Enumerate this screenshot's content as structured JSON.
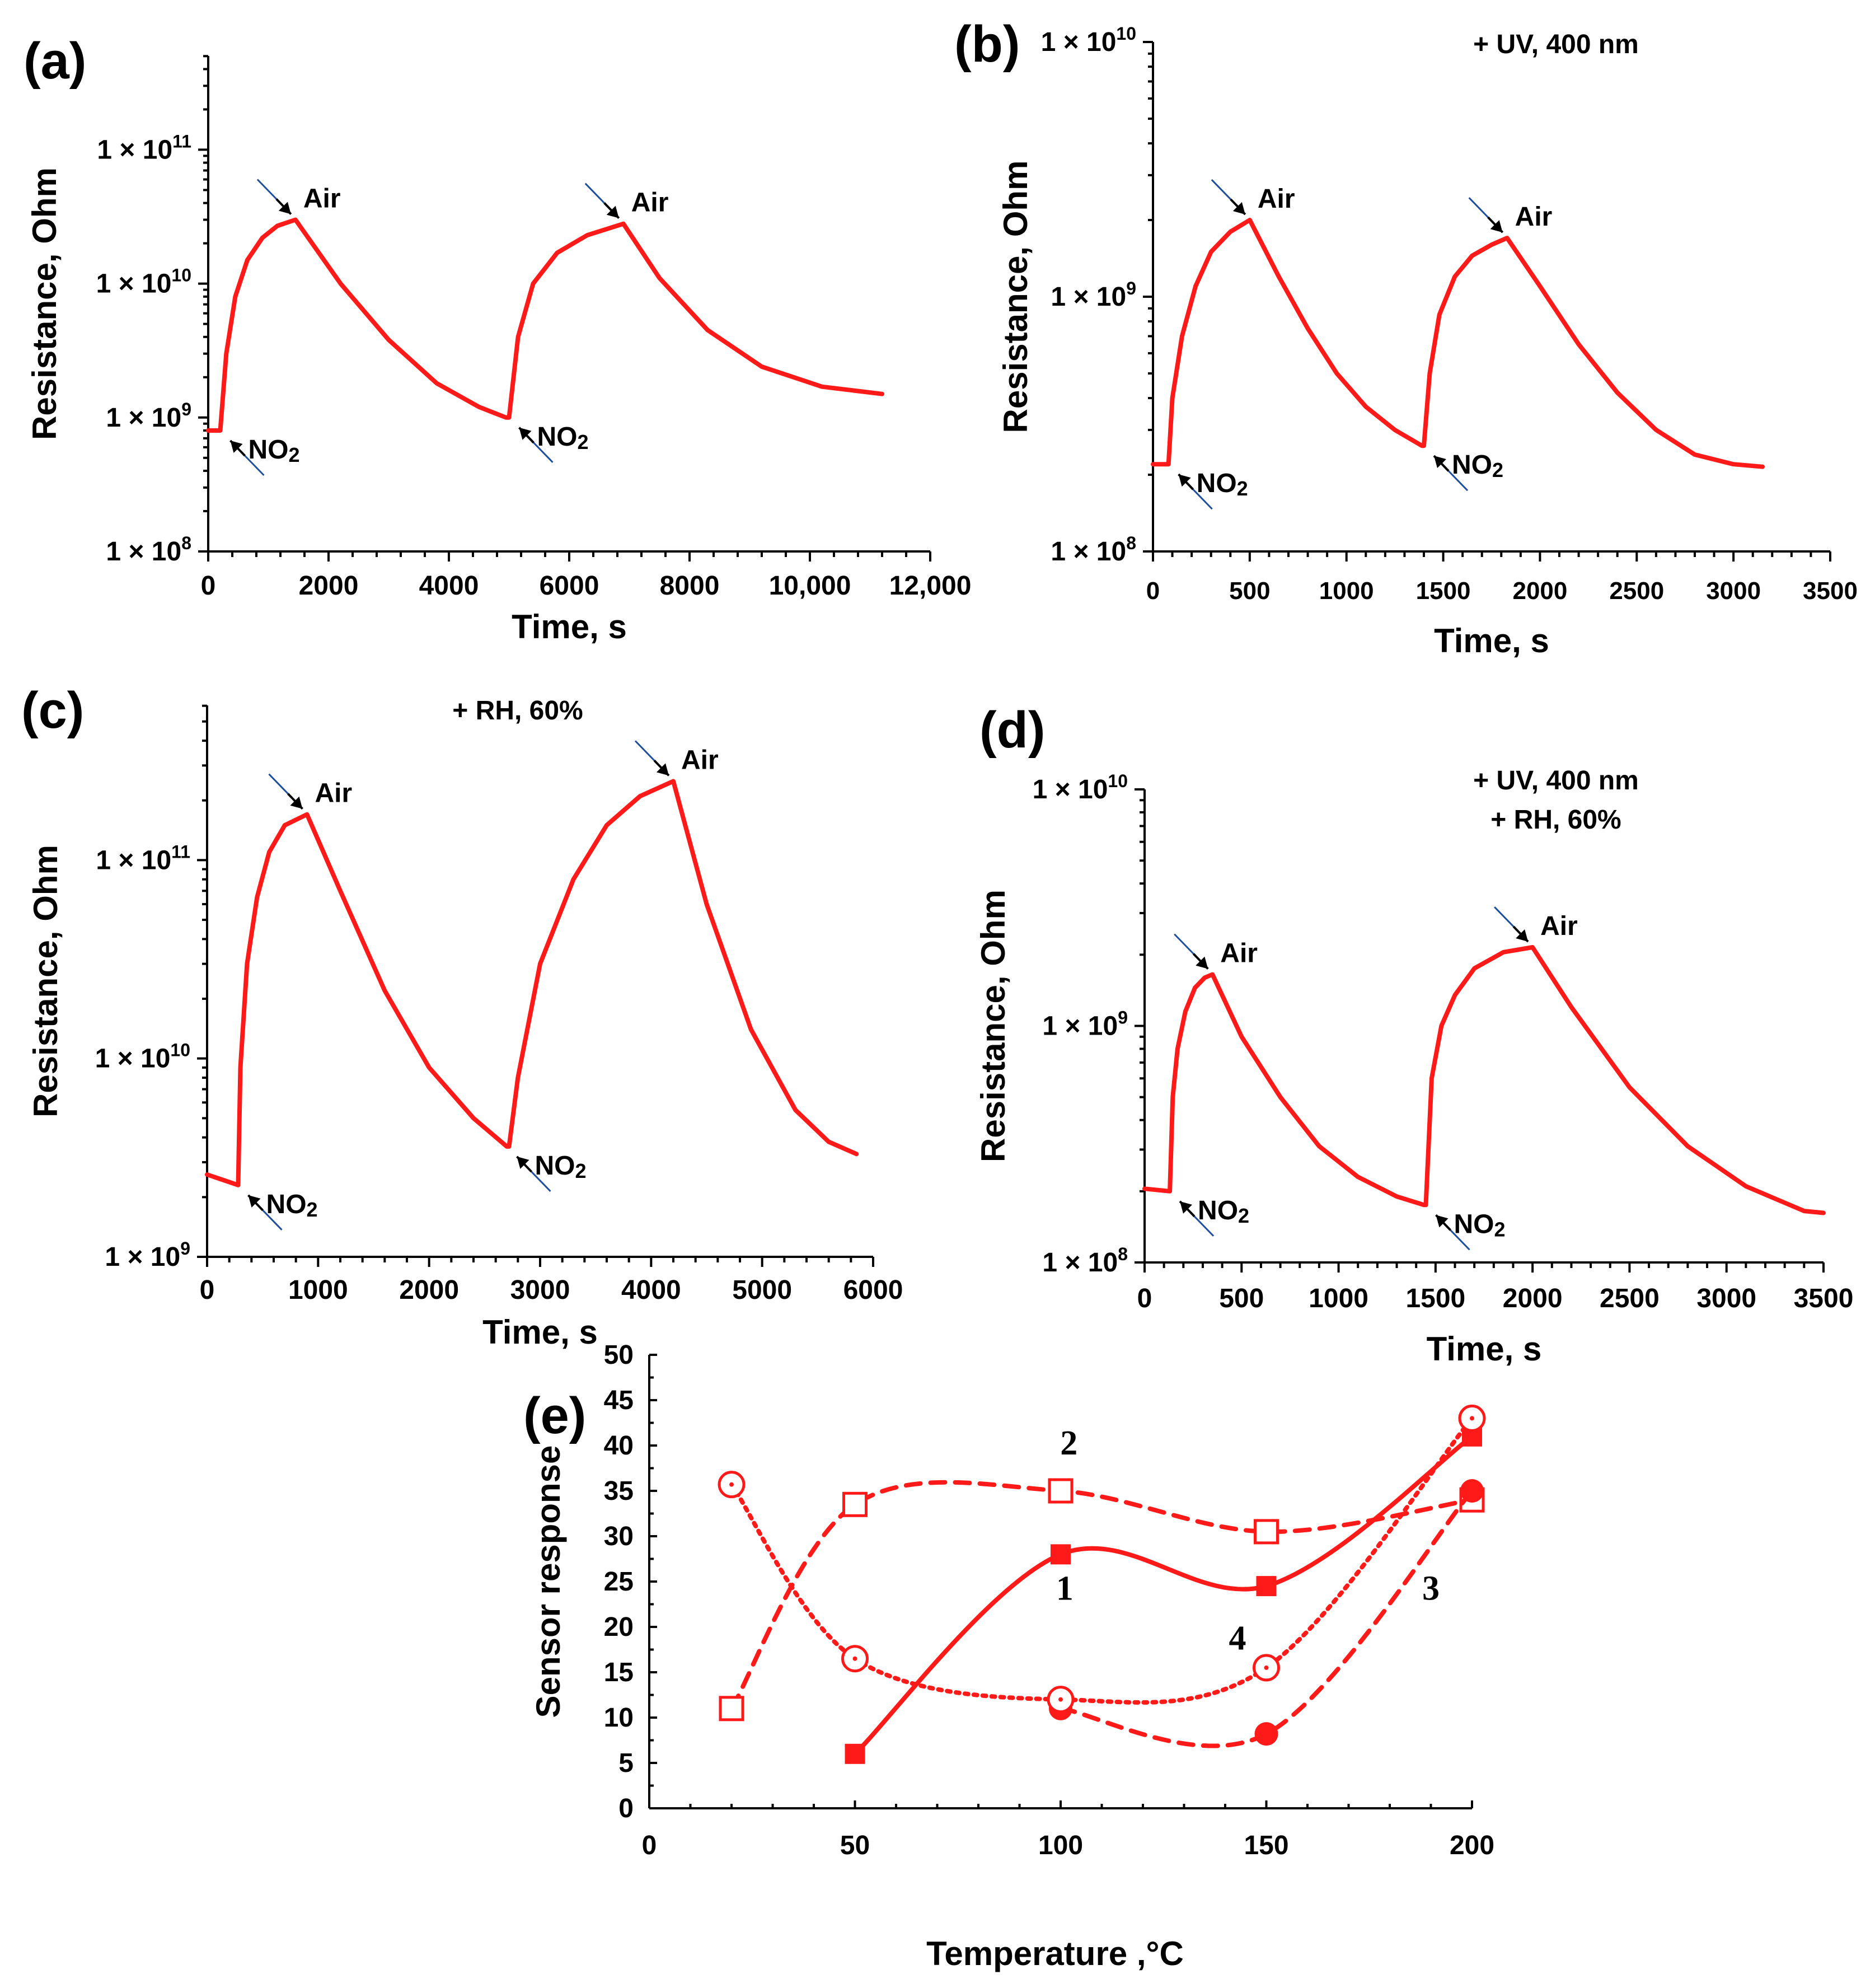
{
  "chart_data": [
    {
      "panel": "(a)",
      "type": "line",
      "yscale": "log",
      "xlabel": "Time, s",
      "ylabel": "Resistance, Ohm",
      "xlim": [
        0,
        12000
      ],
      "ylim": [
        100000000,
        500000000000
      ],
      "x_ticks": [
        "0",
        "2000",
        "4000",
        "6000",
        "8000",
        "10,000",
        "12,000"
      ],
      "y_ticks": [
        {
          "m": "1 × 10",
          "e": "8"
        },
        {
          "m": "1 × 10",
          "e": "9"
        },
        {
          "m": "1 × 10",
          "e": "10"
        },
        {
          "m": "1 × 10",
          "e": "11"
        }
      ],
      "conditions": [],
      "annotations": [
        {
          "text": "NO2",
          "x": 200,
          "y": 800000000,
          "pos": "below"
        },
        {
          "text": "Air",
          "x": 1450,
          "y": 30000000000,
          "pos": "above"
        },
        {
          "text": "NO2",
          "x": 5000,
          "y": 1000000000,
          "pos": "below"
        },
        {
          "text": "Air",
          "x": 6900,
          "y": 28000000000,
          "pos": "above"
        }
      ],
      "series": [
        {
          "name": "resistance",
          "x": [
            0,
            200,
            300,
            450,
            650,
            900,
            1150,
            1450,
            2200,
            3000,
            3800,
            4500,
            4950,
            5000,
            5150,
            5400,
            5800,
            6300,
            6900,
            7500,
            8300,
            9200,
            10200,
            11200
          ],
          "y": [
            800000000,
            800000000,
            3000000000,
            8000000000,
            15000000000,
            22000000000,
            27000000000,
            30000000000,
            10000000000,
            3800000000,
            1800000000,
            1200000000,
            1000000000,
            1000000000,
            4000000000,
            10000000000,
            17000000000,
            23000000000,
            28000000000,
            11000000000,
            4500000000,
            2400000000,
            1700000000,
            1500000000
          ]
        }
      ]
    },
    {
      "panel": "(b)",
      "type": "line",
      "yscale": "log",
      "xlabel": "Time, s",
      "ylabel": "Resistance, Ohm",
      "xlim": [
        0,
        3500
      ],
      "ylim": [
        100000000,
        10000000000
      ],
      "x_ticks": [
        "0",
        "500",
        "1000",
        "1500",
        "2000",
        "2500",
        "3000",
        "3500"
      ],
      "y_ticks": [
        {
          "m": "1 × 10",
          "e": "8"
        },
        {
          "m": "1 × 10",
          "e": "9"
        },
        {
          "m": "1 × 10",
          "e": "10"
        }
      ],
      "conditions": [
        "+ UV, 400 nm"
      ],
      "annotations": [
        {
          "text": "NO2",
          "x": 80,
          "y": 220000000,
          "pos": "below"
        },
        {
          "text": "Air",
          "x": 500,
          "y": 2000000000,
          "pos": "above"
        },
        {
          "text": "NO2",
          "x": 1400,
          "y": 260000000,
          "pos": "below"
        },
        {
          "text": "Air",
          "x": 1830,
          "y": 1700000000,
          "pos": "above"
        }
      ],
      "series": [
        {
          "name": "resistance",
          "x": [
            0,
            80,
            100,
            150,
            220,
            300,
            400,
            500,
            650,
            800,
            950,
            1100,
            1250,
            1390,
            1400,
            1430,
            1480,
            1560,
            1650,
            1750,
            1830,
            2000,
            2200,
            2400,
            2600,
            2800,
            3000,
            3150
          ],
          "y": [
            220000000,
            220000000,
            400000000,
            700000000,
            1100000000,
            1500000000,
            1800000000,
            2000000000,
            1200000000,
            750000000,
            500000000,
            370000000,
            300000000,
            260000000,
            260000000,
            500000000,
            850000000,
            1200000000,
            1450000000,
            1600000000,
            1700000000,
            1100000000,
            650000000,
            420000000,
            300000000,
            240000000,
            220000000,
            215000000
          ]
        }
      ]
    },
    {
      "panel": "(c)",
      "type": "line",
      "yscale": "log",
      "xlabel": "Time, s",
      "ylabel": "Resistance, Ohm",
      "xlim": [
        0,
        6000
      ],
      "ylim": [
        1000000000,
        600000000000
      ],
      "x_ticks": [
        "0",
        "1000",
        "2000",
        "3000",
        "4000",
        "5000",
        "6000"
      ],
      "y_ticks": [
        {
          "m": "1 × 10",
          "e": "9"
        },
        {
          "m": "1 × 10",
          "e": "10"
        },
        {
          "m": "1 × 10",
          "e": "11"
        }
      ],
      "conditions": [
        "+ RH, 60%"
      ],
      "annotations": [
        {
          "text": "NO2",
          "x": 280,
          "y": 2300000000,
          "pos": "below"
        },
        {
          "text": "Air",
          "x": 900,
          "y": 170000000000,
          "pos": "above"
        },
        {
          "text": "NO2",
          "x": 2700,
          "y": 3600000000,
          "pos": "below"
        },
        {
          "text": "Air",
          "x": 4200,
          "y": 250000000000,
          "pos": "above"
        }
      ],
      "series": [
        {
          "name": "resistance",
          "x": [
            0,
            280,
            300,
            360,
            450,
            560,
            700,
            900,
            1200,
            1600,
            2000,
            2400,
            2700,
            2720,
            2800,
            3000,
            3300,
            3600,
            3900,
            4200,
            4500,
            4900,
            5300,
            5600,
            5850
          ],
          "y": [
            2600000000,
            2300000000,
            9000000000,
            30000000000,
            65000000000,
            110000000000,
            150000000000,
            170000000000,
            70000000000,
            22000000000,
            9000000000,
            5000000000,
            3600000000,
            3600000000,
            8000000000,
            30000000000,
            80000000000,
            150000000000,
            210000000000,
            250000000000,
            60000000000,
            14000000000,
            5500000000,
            3800000000,
            3300000000
          ]
        }
      ]
    },
    {
      "panel": "(d)",
      "type": "line",
      "yscale": "log",
      "xlabel": "Time, s",
      "ylabel": "Resistance, Ohm",
      "xlim": [
        0,
        3500
      ],
      "ylim": [
        100000000,
        10000000000
      ],
      "x_ticks": [
        "0",
        "500",
        "1000",
        "1500",
        "2000",
        "2500",
        "3000",
        "3500"
      ],
      "y_ticks": [
        {
          "m": "1 × 10",
          "e": "8"
        },
        {
          "m": "1 × 10",
          "e": "9"
        },
        {
          "m": "1 × 10",
          "e": "10"
        }
      ],
      "conditions": [
        "+ UV, 400 nm",
        "+ RH, 60%"
      ],
      "annotations": [
        {
          "text": "NO2",
          "x": 130,
          "y": 200000000,
          "pos": "below"
        },
        {
          "text": "Air",
          "x": 350,
          "y": 1650000000,
          "pos": "above"
        },
        {
          "text": "NO2",
          "x": 1450,
          "y": 175000000,
          "pos": "below"
        },
        {
          "text": "Air",
          "x": 2000,
          "y": 2150000000,
          "pos": "above"
        }
      ],
      "series": [
        {
          "name": "resistance",
          "x": [
            0,
            130,
            145,
            170,
            210,
            260,
            310,
            350,
            500,
            700,
            900,
            1100,
            1300,
            1440,
            1450,
            1480,
            1530,
            1600,
            1700,
            1850,
            2000,
            2200,
            2500,
            2800,
            3100,
            3400,
            3500
          ],
          "y": [
            205000000,
            200000000,
            500000000,
            800000000,
            1150000000,
            1450000000,
            1600000000,
            1650000000,
            900000000,
            500000000,
            310000000,
            230000000,
            190000000,
            175000000,
            175000000,
            600000000,
            1000000000,
            1350000000,
            1750000000,
            2050000000,
            2150000000,
            1200000000,
            550000000,
            310000000,
            210000000,
            165000000,
            162000000
          ]
        }
      ]
    },
    {
      "panel": "(e)",
      "type": "line",
      "xlabel": "Temperature ,°C",
      "ylabel": "Sensor response",
      "xlim": [
        0,
        200
      ],
      "ylim": [
        0,
        50
      ],
      "x_ticks": [
        "0",
        "50",
        "100",
        "150",
        "200"
      ],
      "y_ticks": [
        "0",
        "5",
        "10",
        "15",
        "20",
        "25",
        "30",
        "35",
        "40",
        "45",
        "50"
      ],
      "series": [
        {
          "name": "1",
          "marker": "filled-square",
          "style": "solid",
          "x": [
            50,
            100,
            150,
            200
          ],
          "y": [
            6,
            28,
            24.5,
            41
          ]
        },
        {
          "name": "2",
          "marker": "open-square",
          "style": "dashed",
          "x": [
            20,
            50,
            100,
            150,
            200
          ],
          "y": [
            11,
            33.5,
            35,
            30.5,
            34
          ]
        },
        {
          "name": "3",
          "marker": "filled-circle",
          "style": "dashed",
          "x": [
            100,
            150,
            200
          ],
          "y": [
            11,
            8.2,
            35
          ]
        },
        {
          "name": "4",
          "marker": "open-circle",
          "style": "dotted",
          "x": [
            20,
            50,
            100,
            150,
            200
          ],
          "y": [
            35.7,
            16.5,
            12,
            15.5,
            43
          ]
        }
      ],
      "curve_labels": [
        {
          "text": "1",
          "x": 101,
          "y": 23
        },
        {
          "text": "2",
          "x": 102,
          "y": 39
        },
        {
          "text": "3",
          "x": 190,
          "y": 23
        },
        {
          "text": "4",
          "x": 143,
          "y": 17.5
        }
      ]
    }
  ]
}
